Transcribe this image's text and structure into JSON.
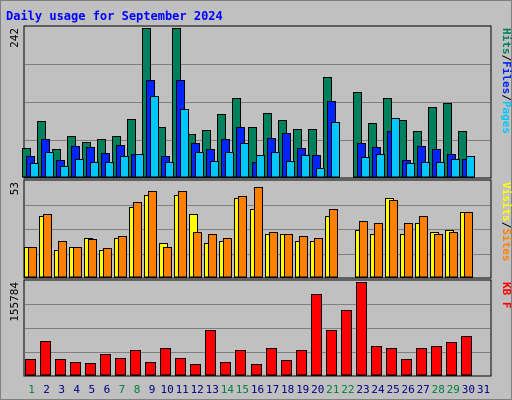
{
  "chart_data": [
    {
      "type": "bar",
      "title": "Daily usage for September 2024",
      "categories": [
        "1",
        "2",
        "3",
        "4",
        "5",
        "6",
        "7",
        "8",
        "9",
        "10",
        "11",
        "12",
        "13",
        "14",
        "15",
        "16",
        "17",
        "18",
        "19",
        "20",
        "21",
        "22",
        "23",
        "24",
        "25",
        "26",
        "27",
        "28",
        "29",
        "30",
        "31"
      ],
      "weekend_days": [
        "1",
        "7",
        "8",
        "14",
        "15",
        "21",
        "22",
        "28",
        "29"
      ],
      "ylabel_parts": [
        "Pages",
        "Files",
        "Hits"
      ],
      "ymax_label": "242",
      "ylim": [
        0,
        242
      ],
      "series": [
        {
          "name": "Hits",
          "color": "#00805c",
          "values": [
            47,
            91,
            46,
            67,
            57,
            62,
            67,
            94,
            242,
            82,
            242,
            70,
            77,
            102,
            129,
            82,
            104,
            92,
            78,
            78,
            162,
            0,
            138,
            88,
            129,
            93,
            74,
            114,
            120,
            74,
            0
          ]
        },
        {
          "name": "Files",
          "color": "#0024ff",
          "values": [
            34,
            62,
            27,
            51,
            49,
            39,
            52,
            37,
            157,
            34,
            157,
            56,
            46,
            62,
            82,
            24,
            64,
            71,
            47,
            36,
            123,
            0,
            55,
            49,
            75,
            28,
            50,
            46,
            38,
            30,
            0
          ]
        },
        {
          "name": "Pages",
          "color": "#00c8ff",
          "values": [
            22,
            41,
            18,
            30,
            25,
            24,
            34,
            37,
            132,
            24,
            111,
            41,
            26,
            41,
            55,
            35,
            40,
            26,
            36,
            14,
            90,
            0,
            33,
            38,
            96,
            23,
            25,
            24,
            29,
            34,
            0
          ]
        }
      ]
    },
    {
      "type": "bar",
      "categories": [
        "1",
        "2",
        "3",
        "4",
        "5",
        "6",
        "7",
        "8",
        "9",
        "10",
        "11",
        "12",
        "13",
        "14",
        "15",
        "16",
        "17",
        "18",
        "19",
        "20",
        "21",
        "22",
        "23",
        "24",
        "25",
        "26",
        "27",
        "28",
        "29",
        "30",
        "31"
      ],
      "ylabel_parts": [
        "Sites",
        "Visits"
      ],
      "ymax_label": "53",
      "ylim": [
        0,
        53
      ],
      "series": [
        {
          "name": "Visits",
          "color": "#ffff00",
          "values": [
            17,
            34,
            15,
            17,
            22,
            15,
            22,
            39,
            46,
            19,
            46,
            35,
            19,
            20,
            44,
            38,
            24,
            24,
            20,
            20,
            34,
            0,
            26,
            24,
            44,
            24,
            30,
            25,
            26,
            36,
            0
          ]
        },
        {
          "name": "Sites",
          "color": "#ff8000",
          "values": [
            17,
            35,
            20,
            17,
            21,
            16,
            23,
            42,
            48,
            17,
            48,
            25,
            24,
            22,
            45,
            50,
            25,
            24,
            23,
            22,
            38,
            0,
            31,
            30,
            43,
            30,
            34,
            24,
            25,
            36,
            0
          ]
        }
      ]
    },
    {
      "type": "bar",
      "categories": [
        "1",
        "2",
        "3",
        "4",
        "5",
        "6",
        "7",
        "8",
        "9",
        "10",
        "11",
        "12",
        "13",
        "14",
        "15",
        "16",
        "17",
        "18",
        "19",
        "20",
        "21",
        "22",
        "23",
        "24",
        "25",
        "26",
        "27",
        "28",
        "29",
        "30",
        "31"
      ],
      "ylabel": "KB F",
      "ymax_label": "155784",
      "ylim": [
        0,
        155784
      ],
      "series": [
        {
          "name": "KB F",
          "color": "#ff0000",
          "values": [
            26350,
            56470,
            26350,
            22590,
            20700,
            35760,
            28230,
            41400,
            22590,
            45170,
            28230,
            18820,
            75280,
            22590,
            41400,
            18820,
            45170,
            24470,
            41400,
            135550,
            75280,
            109160,
            155784,
            48940,
            45170,
            26350,
            45170,
            48940,
            54590,
            65880,
            0
          ]
        }
      ]
    }
  ],
  "colors": {
    "background": "#c0c0c0",
    "plot_background": "#c0c0c0",
    "title": "#0000ff",
    "gridline": "#808080",
    "weekend_label": "#008040",
    "weekday_label": "#000080"
  }
}
